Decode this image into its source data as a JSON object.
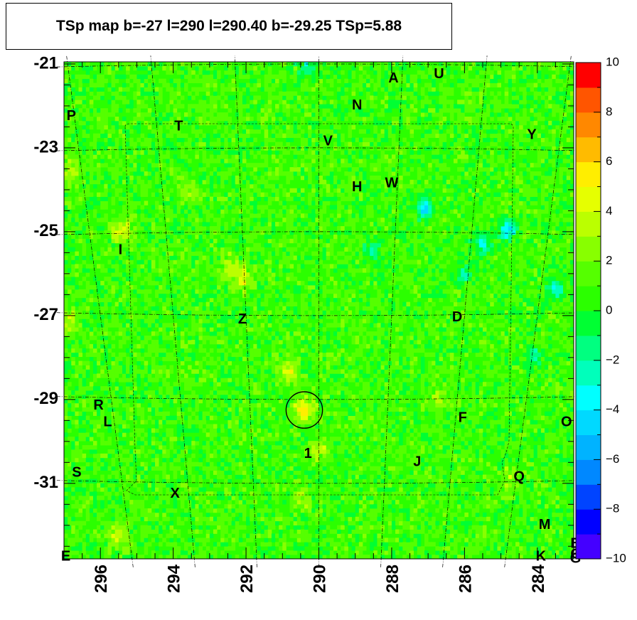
{
  "title": "TSp map b=-27 l=290 l=290.40 b=-29.25 TSp=5.88",
  "chart_data": {
    "type": "heatmap",
    "title": "TSp map b=-27 l=290 l=290.40 b=-29.25 TSp=5.88",
    "x_axis": {
      "range": [
        297.0,
        283.0
      ],
      "reversed": true,
      "ticks": [
        296,
        294,
        292,
        290,
        288,
        286,
        284
      ],
      "tick_labels": [
        "296",
        "294",
        "292",
        "290",
        "288",
        "286",
        "284"
      ]
    },
    "y_axis": {
      "range": [
        -32.8,
        -20.95
      ],
      "ticks": [
        -21,
        -23,
        -25,
        -27,
        -29,
        -31
      ],
      "tick_labels": [
        "-21",
        "-23",
        "-25",
        "-27",
        "-29",
        "-31"
      ]
    },
    "z_range": [
      -10,
      10
    ],
    "colorbar": {
      "ticks": [
        10,
        8,
        6,
        4,
        2,
        0,
        -2,
        -4,
        -6,
        -8,
        -10
      ],
      "tick_labels": [
        "10",
        "8",
        "6",
        "4",
        "2",
        "0",
        "−2",
        "−4",
        "−6",
        "−8",
        "−10"
      ]
    },
    "background_level": 0.8,
    "hotspots": [
      {
        "l": 290.4,
        "b": -29.25,
        "value": 5.9
      },
      {
        "l": 290.85,
        "b": -28.35,
        "value": 4.5
      },
      {
        "l": 292.05,
        "b": -26.15,
        "value": 4.6
      },
      {
        "l": 292.45,
        "b": -25.85,
        "value": 3.8
      },
      {
        "l": 295.5,
        "b": -32.2,
        "value": 4.2
      },
      {
        "l": 296.8,
        "b": -23.6,
        "value": 3.6
      },
      {
        "l": 296.85,
        "b": -27.2,
        "value": 4.0
      },
      {
        "l": 295.45,
        "b": -25.0,
        "value": 4.6
      },
      {
        "l": 290.0,
        "b": -30.2,
        "value": 3.3
      },
      {
        "l": 293.5,
        "b": -24.0,
        "value": 3.0
      },
      {
        "l": 286.7,
        "b": -29.0,
        "value": 3.0
      },
      {
        "l": 290.5,
        "b": -31.4,
        "value": 3.2
      },
      {
        "l": 284.7,
        "b": -30.9,
        "value": 3.0
      }
    ],
    "coldspots": [
      {
        "l": 287.1,
        "b": -24.5,
        "value": -4.5
      },
      {
        "l": 285.5,
        "b": -25.3,
        "value": -3.5
      },
      {
        "l": 284.8,
        "b": -25.0,
        "value": -4.8
      },
      {
        "l": 283.5,
        "b": -26.4,
        "value": -3.2
      },
      {
        "l": 288.5,
        "b": -25.5,
        "value": -2.5
      },
      {
        "l": 290.3,
        "b": -21.1,
        "value": -2.3
      },
      {
        "l": 284.1,
        "b": -28.0,
        "value": -2.6
      },
      {
        "l": 286.0,
        "b": -26.0,
        "value": -2.3
      }
    ],
    "source_circle": {
      "l": 290.4,
      "b": -29.25,
      "radius_deg": 0.5
    },
    "labels": [
      {
        "text": "A",
        "l": 287.95,
        "b": -21.35
      },
      {
        "text": "U",
        "l": 286.7,
        "b": -21.25
      },
      {
        "text": "N",
        "l": 288.95,
        "b": -22.0
      },
      {
        "text": "P",
        "l": 296.8,
        "b": -22.25
      },
      {
        "text": "T",
        "l": 293.85,
        "b": -22.5
      },
      {
        "text": "V",
        "l": 289.75,
        "b": -22.85
      },
      {
        "text": "Y",
        "l": 284.15,
        "b": -22.7
      },
      {
        "text": "H",
        "l": 288.95,
        "b": -23.95
      },
      {
        "text": "W",
        "l": 288.0,
        "b": -23.85
      },
      {
        "text": "I",
        "l": 295.45,
        "b": -25.45
      },
      {
        "text": "Z",
        "l": 292.1,
        "b": -27.1
      },
      {
        "text": "D",
        "l": 286.2,
        "b": -27.05
      },
      {
        "text": "R",
        "l": 296.05,
        "b": -29.15
      },
      {
        "text": "L",
        "l": 295.8,
        "b": -29.55
      },
      {
        "text": "F",
        "l": 286.05,
        "b": -29.45
      },
      {
        "text": "O",
        "l": 283.2,
        "b": -29.55
      },
      {
        "text": "1",
        "l": 290.3,
        "b": -30.3
      },
      {
        "text": "J",
        "l": 287.3,
        "b": -30.5
      },
      {
        "text": "S",
        "l": 296.65,
        "b": -30.75
      },
      {
        "text": "Q",
        "l": 284.5,
        "b": -30.85
      },
      {
        "text": "X",
        "l": 293.95,
        "b": -31.25
      },
      {
        "text": "M",
        "l": 283.8,
        "b": -32.0
      },
      {
        "text": "B",
        "l": 282.95,
        "b": -32.45
      },
      {
        "text": "E",
        "l": 296.95,
        "b": -32.75
      },
      {
        "text": "K",
        "l": 283.9,
        "b": -32.75
      },
      {
        "text": "C",
        "l": 282.95,
        "b": -32.7
      },
      {
        "text": "G",
        "l": 282.95,
        "b": -32.8
      }
    ]
  },
  "colors": {
    "palette": [
      "#7f00ff",
      "#4400ff",
      "#0000ff",
      "#0044ff",
      "#0088ff",
      "#00b3ff",
      "#00d9ff",
      "#00ffff",
      "#00ffbb",
      "#00ff80",
      "#00ff33",
      "#2bff00",
      "#55ff00",
      "#88ff00",
      "#bbff00",
      "#e6ff00",
      "#ffee00",
      "#ffbb00",
      "#ff8800",
      "#ff5500",
      "#ff0000"
    ],
    "axis": "#000000",
    "grid": "#000000",
    "circle": "#000000"
  }
}
